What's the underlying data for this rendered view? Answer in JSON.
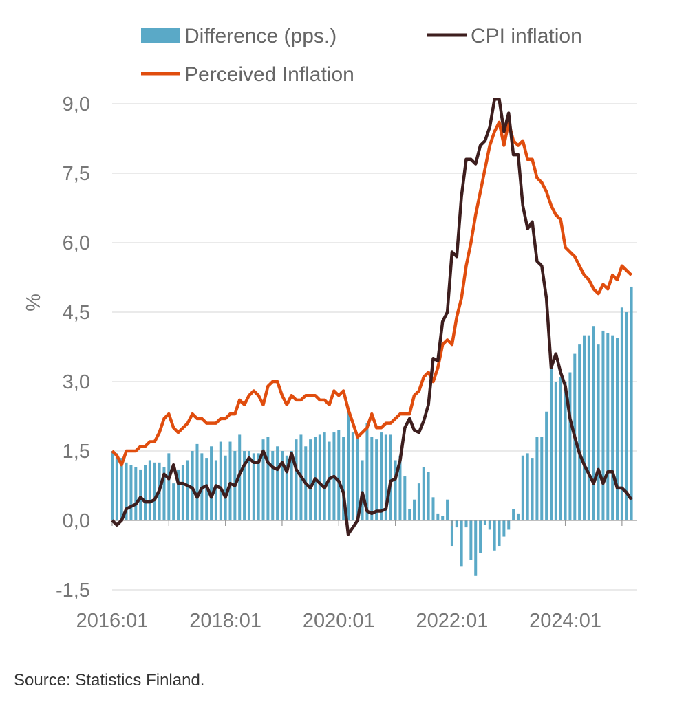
{
  "chart_data": {
    "type": "bar+line",
    "title": "",
    "xlabel": "",
    "ylabel": "%",
    "ylim": [
      -1.5,
      9.0
    ],
    "yticks": [
      "-1,5",
      "0,0",
      "1,5",
      "3,0",
      "4,5",
      "6,0",
      "7,5",
      "9,0"
    ],
    "ytick_values": [
      -1.5,
      0,
      1.5,
      3.0,
      4.5,
      6.0,
      7.5,
      9.0
    ],
    "xticks": [
      "2016:01",
      "2018:01",
      "2020:01",
      "2022:01",
      "2024:01"
    ],
    "x_start": "2016:01",
    "x_end": "2025:03",
    "frequency": "monthly",
    "grid": "horizontal",
    "legend_position": "top",
    "series": [
      {
        "name": "Difference (pps.)",
        "type": "bar",
        "color": "#5aa9c7",
        "values": [
          1.5,
          1.45,
          1.35,
          1.25,
          1.2,
          1.15,
          1.1,
          1.2,
          1.3,
          1.25,
          1.25,
          1.15,
          1.45,
          0.8,
          1.1,
          1.2,
          1.3,
          1.5,
          1.65,
          1.45,
          1.35,
          1.6,
          1.3,
          1.7,
          1.4,
          1.7,
          1.5,
          1.85,
          1.5,
          1.5,
          1.45,
          1.45,
          1.75,
          1.8,
          1.5,
          1.6,
          1.5,
          1.4,
          1.5,
          1.75,
          1.85,
          1.6,
          1.75,
          1.8,
          1.85,
          1.9,
          1.7,
          1.9,
          1.95,
          1.8,
          2.4,
          1.9,
          1.8,
          1.3,
          2.1,
          1.8,
          1.75,
          1.9,
          1.85,
          1.85,
          1.3,
          1.4,
          0.95,
          0.25,
          0.45,
          0.8,
          1.15,
          1.05,
          0.5,
          0.15,
          0.1,
          0.45,
          -0.55,
          -0.15,
          -1.0,
          -0.15,
          -0.85,
          -1.2,
          -0.7,
          -0.1,
          -0.2,
          -0.65,
          -0.55,
          -0.35,
          -0.2,
          0.25,
          0.15,
          1.4,
          1.45,
          1.35,
          1.8,
          1.8,
          2.35,
          3.3,
          3.0,
          3.1,
          3.0,
          3.2,
          3.6,
          3.8,
          4.0,
          4.0,
          4.2,
          3.8,
          4.1,
          4.05,
          4.0,
          3.95,
          4.6,
          4.5,
          5.05
        ]
      },
      {
        "name": "CPI inflation",
        "type": "line",
        "color": "#3d1e1e",
        "values": [
          0.0,
          -0.1,
          0.0,
          0.25,
          0.3,
          0.35,
          0.5,
          0.4,
          0.4,
          0.45,
          0.65,
          1.0,
          0.9,
          1.2,
          0.8,
          0.8,
          0.75,
          0.7,
          0.5,
          0.7,
          0.75,
          0.5,
          0.75,
          0.7,
          0.5,
          0.8,
          0.75,
          1.0,
          1.2,
          1.35,
          1.25,
          1.25,
          1.5,
          1.25,
          1.15,
          1.1,
          1.25,
          1.05,
          1.45,
          1.1,
          0.95,
          0.8,
          0.7,
          0.9,
          0.8,
          0.7,
          0.9,
          0.95,
          0.85,
          0.6,
          -0.3,
          -0.15,
          0.0,
          0.6,
          0.2,
          0.15,
          0.2,
          0.2,
          0.25,
          0.85,
          0.9,
          1.3,
          2.0,
          2.2,
          1.95,
          1.9,
          2.15,
          2.5,
          3.5,
          3.45,
          4.3,
          4.5,
          5.8,
          5.7,
          7.0,
          7.8,
          7.8,
          7.7,
          8.1,
          8.2,
          8.5,
          9.1,
          9.1,
          8.4,
          8.8,
          7.9,
          7.9,
          6.8,
          6.3,
          6.45,
          5.6,
          5.5,
          4.8,
          3.3,
          3.6,
          3.2,
          2.9,
          2.2,
          1.8,
          1.45,
          1.2,
          1.0,
          0.8,
          1.1,
          0.8,
          1.05,
          1.05,
          0.7,
          0.7,
          0.6,
          0.45
        ]
      },
      {
        "name": "Perceived Inflation",
        "type": "line",
        "color": "#e04d0e",
        "values": [
          1.5,
          1.4,
          1.2,
          1.5,
          1.5,
          1.5,
          1.6,
          1.6,
          1.7,
          1.7,
          1.9,
          2.2,
          2.3,
          2.0,
          1.9,
          2.0,
          2.1,
          2.3,
          2.2,
          2.2,
          2.1,
          2.1,
          2.1,
          2.2,
          2.2,
          2.3,
          2.3,
          2.6,
          2.5,
          2.7,
          2.8,
          2.7,
          2.5,
          2.9,
          3.0,
          3.0,
          2.7,
          2.5,
          2.7,
          2.6,
          2.6,
          2.7,
          2.7,
          2.7,
          2.6,
          2.6,
          2.5,
          2.8,
          2.7,
          2.8,
          2.4,
          2.1,
          1.8,
          1.9,
          2.0,
          2.3,
          2.0,
          2.0,
          2.1,
          2.1,
          2.2,
          2.3,
          2.3,
          2.3,
          2.7,
          2.8,
          3.1,
          3.2,
          3.0,
          3.3,
          3.8,
          3.9,
          3.8,
          4.4,
          4.8,
          5.5,
          6.0,
          6.6,
          7.1,
          7.6,
          8.1,
          8.4,
          8.6,
          8.1,
          8.6,
          8.2,
          8.1,
          8.2,
          7.8,
          7.8,
          7.4,
          7.3,
          7.1,
          6.8,
          6.6,
          6.5,
          5.9,
          5.8,
          5.7,
          5.5,
          5.3,
          5.2,
          5.0,
          4.9,
          5.1,
          5.0,
          5.3,
          5.2,
          5.5,
          5.4,
          5.3
        ]
      }
    ]
  },
  "source": "Source: Statistics Finland."
}
